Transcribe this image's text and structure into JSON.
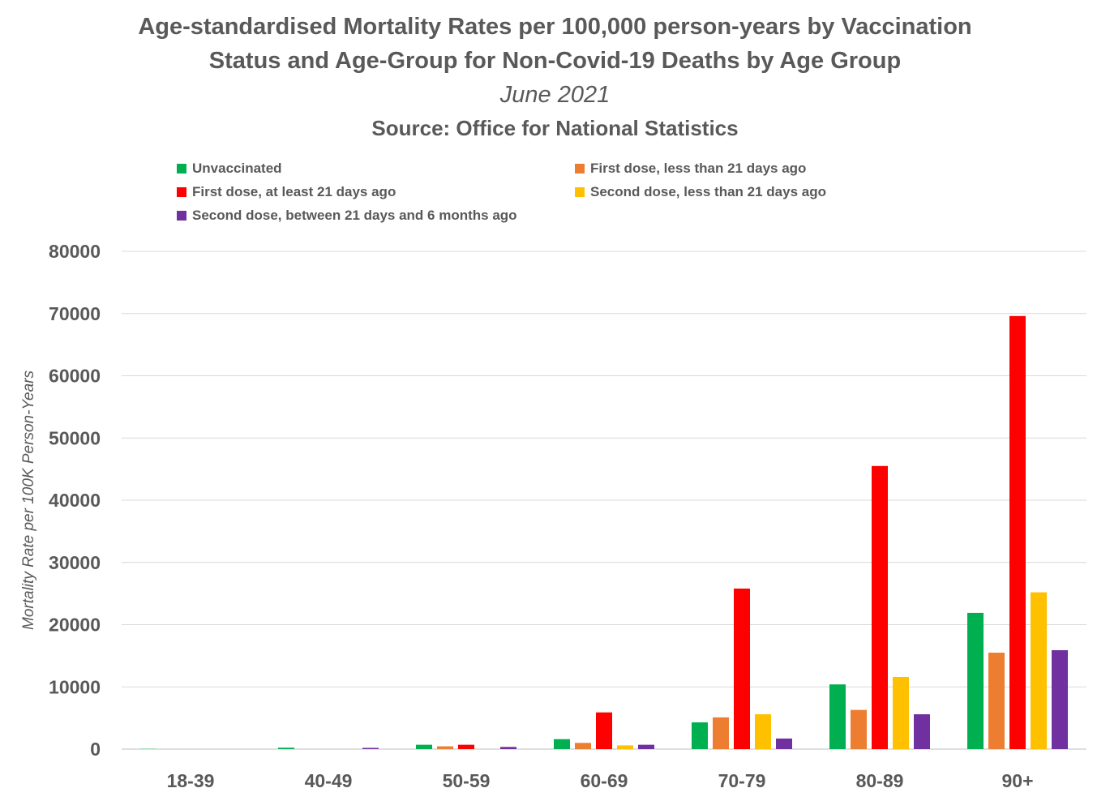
{
  "chart_data": {
    "type": "bar",
    "title": "Age-standardised Mortality Rates per 100,000 person-years by Vaccination Status and Age-Group for Non-Covid-19 Deaths by Age Group",
    "title_line1": "Age-standardised Mortality Rates per 100,000 person-years by Vaccination",
    "title_line2": "Status and Age-Group for Non-Covid-19 Deaths by Age Group",
    "subtitle": "June 2021",
    "source": "Source: Office for National Statistics",
    "xlabel": "",
    "ylabel": "Mortality Rate per 100K Person-Years",
    "ylim": [
      0,
      80000
    ],
    "yticks": [
      0,
      10000,
      20000,
      30000,
      40000,
      50000,
      60000,
      70000,
      80000
    ],
    "grid": true,
    "legend_position": "top",
    "categories": [
      "18-39",
      "40-49",
      "50-59",
      "60-69",
      "70-79",
      "80-89",
      "90+"
    ],
    "series": [
      {
        "name": "Unvaccinated",
        "color": "#00b050",
        "values": [
          40,
          230,
          700,
          1600,
          4300,
          10400,
          21900
        ]
      },
      {
        "name": "First dose, less than 21 days ago",
        "color": "#ed7d31",
        "values": [
          0,
          0,
          450,
          1000,
          5100,
          6300,
          15500
        ]
      },
      {
        "name": "First dose, at least 21 days ago",
        "color": "#ff0000",
        "values": [
          0,
          0,
          700,
          5900,
          25800,
          45500,
          69600
        ]
      },
      {
        "name": "Second dose, less than 21 days ago",
        "color": "#ffc000",
        "values": [
          0,
          0,
          0,
          600,
          5600,
          11600,
          25200
        ]
      },
      {
        "name": "Second dose, between 21 days and 6 months ago",
        "color": "#7030a0",
        "values": [
          0,
          200,
          350,
          700,
          1700,
          5600,
          15900
        ]
      }
    ]
  }
}
